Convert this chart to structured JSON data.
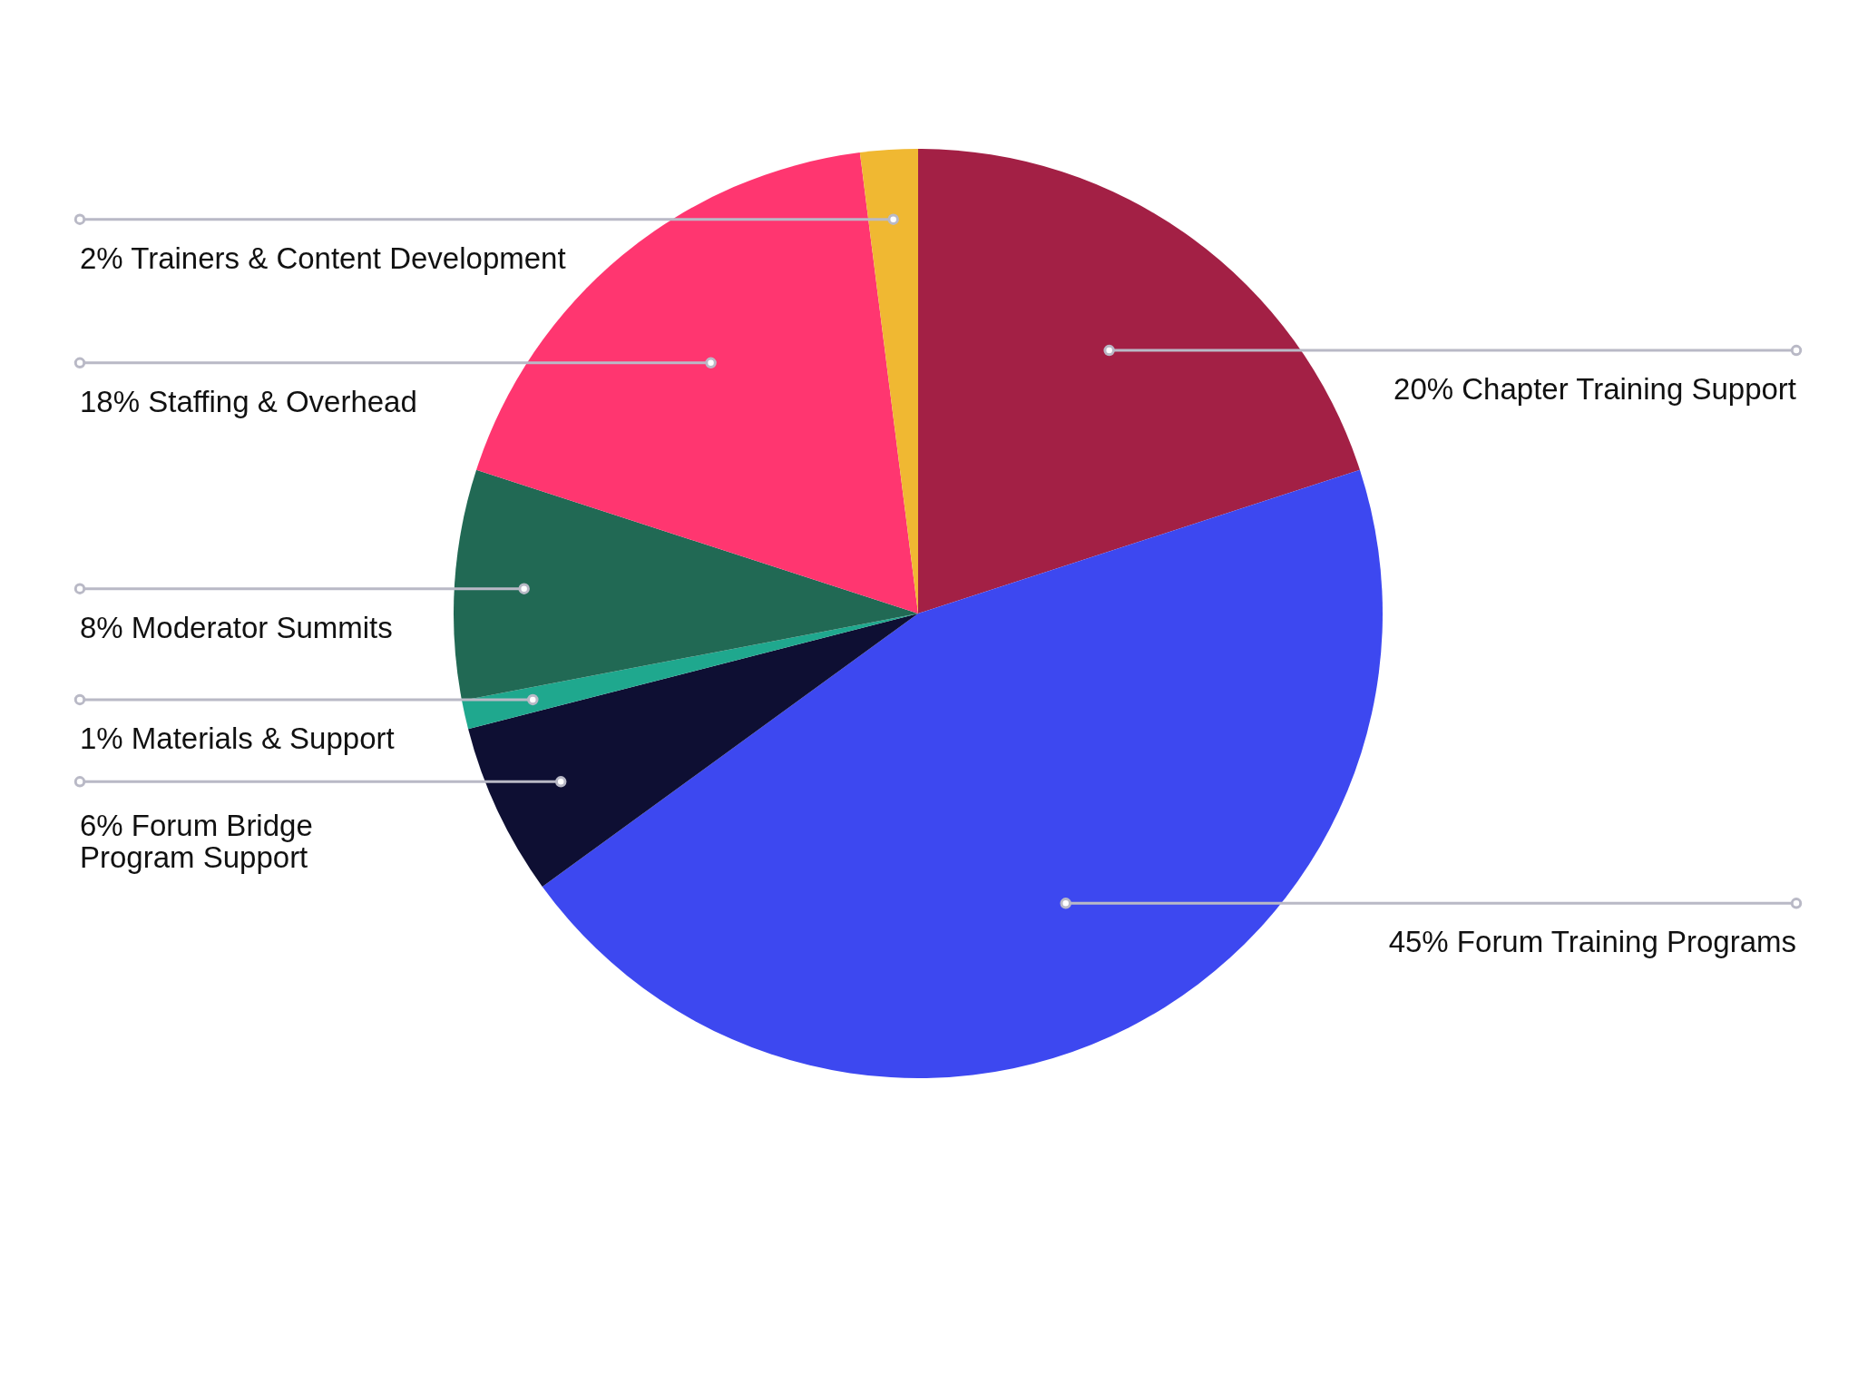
{
  "chart_data": {
    "type": "pie",
    "categories": [
      "Chapter Training Support",
      "Forum Training Programs",
      "Forum Bridge Program Support",
      "Materials & Support",
      "Moderator Summits",
      "Staffing & Overhead",
      "Trainers & Content Development"
    ],
    "values": [
      20,
      45,
      6,
      1,
      8,
      18,
      2
    ],
    "value_labels": [
      "20%",
      "45%",
      "6%",
      "1%",
      "8%",
      "18%",
      "2%"
    ],
    "colors": [
      "#a32045",
      "#3d48f0",
      "#0e0f33",
      "#1fa88e",
      "#216954",
      "#ff3670",
      "#f0b832"
    ]
  }
}
